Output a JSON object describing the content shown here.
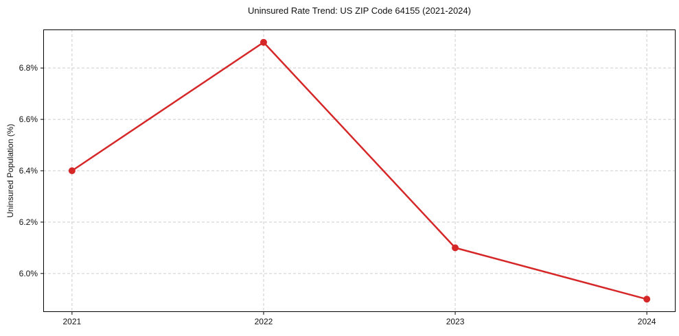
{
  "chart_data": {
    "type": "line",
    "title": "Uninsured Rate Trend: US ZIP Code 64155 (2021-2024)",
    "xlabel": "",
    "ylabel": "Uninsured Population (%)",
    "x": [
      2021,
      2022,
      2023,
      2024
    ],
    "values": [
      6.4,
      6.9,
      6.1,
      5.9
    ],
    "xtick_labels": [
      "2021",
      "2022",
      "2023",
      "2024"
    ],
    "ytick_values": [
      6.0,
      6.2,
      6.4,
      6.6,
      6.8
    ],
    "ytick_labels": [
      "6.0%",
      "6.2%",
      "6.4%",
      "6.6%",
      "6.8%"
    ],
    "xlim": [
      2020.85,
      2024.15
    ],
    "ylim": [
      5.85,
      6.95
    ],
    "grid": "both-dashed",
    "legend": "none",
    "colors": {
      "line": "#d62728",
      "marker": "#d62728",
      "grid": "#cccccc",
      "frame": "#000000",
      "text": "#111111",
      "background": "#ffffff"
    },
    "marker": "circle",
    "line_width": 2.5,
    "marker_radius": 5
  }
}
